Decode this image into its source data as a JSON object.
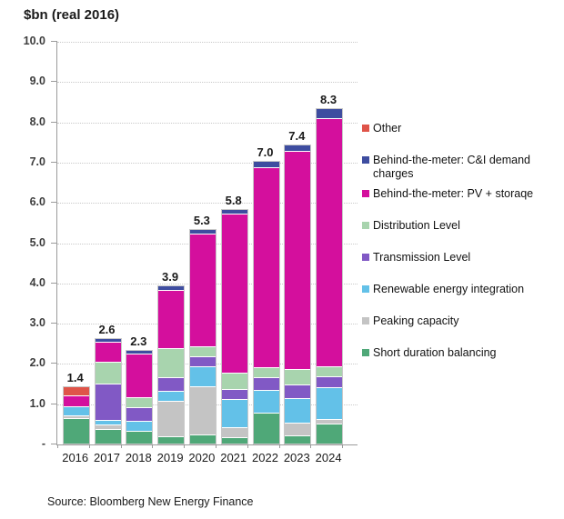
{
  "title": "$bn (real 2016)",
  "source": {
    "text": "Source: Bloomberg New Energy Finance"
  },
  "chart_data": {
    "type": "bar",
    "subtype": "stacked",
    "title": "$bn (real 2016)",
    "ylabel": "$bn (real 2016)",
    "ylim": [
      0,
      10
    ],
    "ytick_step": 1.0,
    "grid": "dotted-horizontal",
    "legend_position": "right",
    "ylabels_top_to_bottom": [
      "10.0",
      "9.0",
      "8.0",
      "7.0",
      "6.0",
      "5.0",
      "4.0",
      "3.0",
      "2.0",
      "1.0",
      "-"
    ],
    "categories": [
      "2016",
      "2017",
      "2018",
      "2019",
      "2020",
      "2021",
      "2022",
      "2023",
      "2024"
    ],
    "totals": [
      "1.4",
      "2.6",
      "2.3",
      "3.9",
      "5.3",
      "5.8",
      "7.0",
      "7.4",
      "8.3"
    ],
    "series": [
      {
        "name": "Short duration balancing",
        "color": "#4fa878",
        "values": [
          0.6,
          0.35,
          0.3,
          0.15,
          0.2,
          0.13,
          0.75,
          0.17,
          0.47
        ]
      },
      {
        "name": "Peaking capacity",
        "color": "#c4c4c4",
        "values": [
          0.08,
          0.1,
          0,
          0.88,
          1.2,
          0.25,
          0,
          0.33,
          0.12
        ]
      },
      {
        "name": "Renewable energy integration",
        "color": "#63c1e8",
        "values": [
          0.22,
          0.12,
          0.25,
          0.25,
          0.5,
          0.7,
          0.57,
          0.6,
          0.78
        ]
      },
      {
        "name": "Transmission Level",
        "color": "#8159c5",
        "values": [
          0,
          0.9,
          0.32,
          0.35,
          0.25,
          0.25,
          0.3,
          0.34,
          0.28
        ]
      },
      {
        "name": "Distribution Level",
        "color": "#a8d4ae",
        "values": [
          0,
          0.55,
          0.25,
          0.72,
          0.25,
          0.42,
          0.25,
          0.38,
          0.25
        ]
      },
      {
        "name": "Behind-the-meter: PV + storaqe",
        "color": "#d40f9d",
        "values": [
          0.27,
          0.5,
          1.1,
          1.45,
          2.8,
          3.95,
          4.98,
          5.43,
          6.15
        ]
      },
      {
        "name": "Behind-the-meter: C&I demand charges",
        "color": "#3e4da0",
        "values": [
          0,
          0.08,
          0.08,
          0.1,
          0.1,
          0.1,
          0.15,
          0.15,
          0.25
        ]
      },
      {
        "name": "Other",
        "color": "#df5449",
        "values": [
          0.23,
          0,
          0,
          0,
          0,
          0,
          0,
          0,
          0
        ]
      }
    ]
  },
  "legend": {
    "items": [
      {
        "label": "Other",
        "color": "#df5449",
        "two_line": false
      },
      {
        "label": "Behind-the-meter: C&I demand charges",
        "color": "#3e4da0",
        "two_line": true
      },
      {
        "label": "Behind-the-meter: PV + storaqe",
        "color": "#d40f9d",
        "two_line": false
      },
      {
        "label": "Distribution Level",
        "color": "#a8d4ae",
        "two_line": false
      },
      {
        "label": "Transmission Level",
        "color": "#8159c5",
        "two_line": false
      },
      {
        "label": "Renewable energy integration",
        "color": "#63c1e8",
        "two_line": false
      },
      {
        "label": "Peaking capacity",
        "color": "#c4c4c4",
        "two_line": false
      },
      {
        "label": "Short duration balancing",
        "color": "#4fa878",
        "two_line": false
      }
    ]
  }
}
